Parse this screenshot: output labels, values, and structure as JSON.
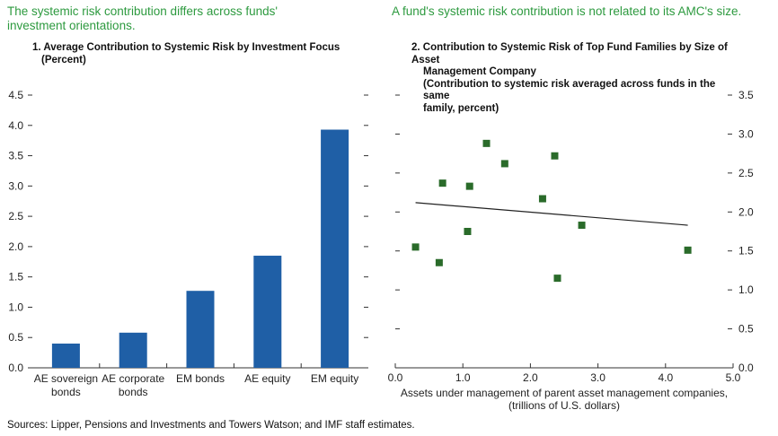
{
  "headlines": {
    "left": "The systemic risk contribution differs across funds' investment orientations.",
    "right": "A fund's systemic risk contribution is not related to its AMC's size."
  },
  "colors": {
    "headline": "#2d9a3f",
    "bar": "#1f5fa6",
    "marker": "#2a6b2a",
    "trend": "#222222"
  },
  "chart_data": [
    {
      "type": "bar",
      "title_line1": "1.  Average Contribution to Systemic Risk by Investment Focus",
      "title_line2": "(Percent)",
      "categories": [
        {
          "line1": "AE sovereign",
          "line2": "bonds"
        },
        {
          "line1": "AE corporate",
          "line2": "bonds"
        },
        {
          "line1": "EM bonds",
          "line2": ""
        },
        {
          "line1": "AE equity",
          "line2": ""
        },
        {
          "line1": "EM equity",
          "line2": ""
        }
      ],
      "values": [
        0.4,
        0.58,
        1.27,
        1.85,
        3.93
      ],
      "ylim": [
        0,
        4.5
      ],
      "yticks": [
        "0.0",
        "0.5",
        "1.0",
        "1.5",
        "2.0",
        "2.5",
        "3.0",
        "3.5",
        "4.0",
        "4.5"
      ]
    },
    {
      "type": "scatter",
      "title_line1": "2.  Contribution to Systemic Risk of Top Fund Families by Size of Asset",
      "title_line2": "Management Company",
      "title_line3": "(Contribution to systemic risk averaged across funds in the same",
      "title_line4": "family, percent)",
      "xlabel_line1": "Assets under management of parent asset management companies,",
      "xlabel_line2": "(trillions of U.S. dollars)",
      "xlim": [
        0,
        5
      ],
      "ylim": [
        0,
        3.5
      ],
      "xticks": [
        "0.0",
        "1.0",
        "2.0",
        "3.0",
        "4.0",
        "5.0"
      ],
      "yticks": [
        "0.0",
        "0.5",
        "1.0",
        "1.5",
        "2.0",
        "2.5",
        "3.0",
        "3.5"
      ],
      "points": [
        {
          "x": 0.3,
          "y": 1.55
        },
        {
          "x": 0.65,
          "y": 1.35
        },
        {
          "x": 0.7,
          "y": 2.37
        },
        {
          "x": 1.07,
          "y": 1.75
        },
        {
          "x": 1.1,
          "y": 2.33
        },
        {
          "x": 1.35,
          "y": 2.88
        },
        {
          "x": 1.62,
          "y": 2.62
        },
        {
          "x": 2.18,
          "y": 2.17
        },
        {
          "x": 2.36,
          "y": 2.72
        },
        {
          "x": 2.4,
          "y": 1.15
        },
        {
          "x": 2.76,
          "y": 1.83
        },
        {
          "x": 4.33,
          "y": 1.51
        }
      ],
      "trend": {
        "x0": 0.3,
        "y0": 2.12,
        "x1": 4.33,
        "y1": 1.83
      }
    }
  ],
  "source": "Sources: Lipper, Pensions and Investments and Towers Watson; and IMF staff estimates."
}
